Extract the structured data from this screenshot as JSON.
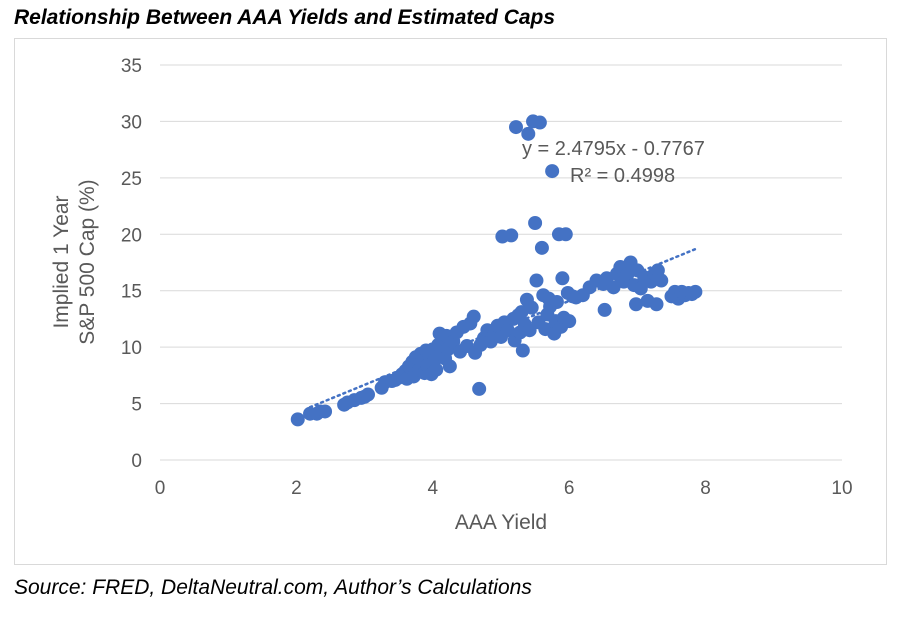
{
  "figure": {
    "title": "Relationship Between AAA Yields and Estimated Caps",
    "source": "Source: FRED, DeltaNeutral.com, Author’s Calculations"
  },
  "chart_data": {
    "type": "scatter",
    "xlabel": "AAA Yield",
    "ylabel_line1": "Implied 1 Year",
    "ylabel_line2": "S&P 500 Cap (%)",
    "xlim": [
      0,
      10
    ],
    "ylim": [
      0,
      35
    ],
    "xticks": [
      0,
      2,
      4,
      6,
      8,
      10
    ],
    "yticks": [
      0,
      5,
      10,
      15,
      20,
      25,
      30,
      35
    ],
    "xtick_labels": [
      "0",
      "2",
      "4",
      "6",
      "8",
      "10"
    ],
    "ytick_labels": [
      "0",
      "5",
      "10",
      "15",
      "20",
      "25",
      "30",
      "35"
    ],
    "grid": "horizontal",
    "marker_color": "#4472c4",
    "trendline": {
      "slope": 2.4795,
      "intercept": -0.7767,
      "x_range": [
        2.2,
        7.85
      ],
      "equation_label": "y = 2.4795x - 0.7767",
      "r2_label": "R² = 0.4998",
      "color": "#4472c4"
    },
    "points": [
      [
        2.02,
        3.6
      ],
      [
        2.2,
        4.1
      ],
      [
        2.3,
        4.1
      ],
      [
        2.35,
        4.3
      ],
      [
        2.42,
        4.3
      ],
      [
        2.7,
        4.9
      ],
      [
        2.75,
        5.1
      ],
      [
        2.85,
        5.3
      ],
      [
        2.95,
        5.5
      ],
      [
        3.0,
        5.6
      ],
      [
        3.05,
        5.8
      ],
      [
        3.25,
        6.4
      ],
      [
        3.3,
        6.9
      ],
      [
        3.4,
        7.0
      ],
      [
        3.45,
        7.1
      ],
      [
        3.5,
        7.3
      ],
      [
        3.55,
        7.6
      ],
      [
        3.6,
        7.9
      ],
      [
        3.62,
        7.2
      ],
      [
        3.65,
        8.3
      ],
      [
        3.7,
        8.7
      ],
      [
        3.72,
        7.4
      ],
      [
        3.75,
        9.1
      ],
      [
        3.8,
        8.0
      ],
      [
        3.82,
        9.4
      ],
      [
        3.85,
        8.6
      ],
      [
        3.88,
        7.7
      ],
      [
        3.9,
        9.7
      ],
      [
        3.92,
        8.4
      ],
      [
        3.95,
        9.2
      ],
      [
        3.98,
        7.6
      ],
      [
        4.0,
        9.8
      ],
      [
        4.02,
        8.8
      ],
      [
        4.05,
        8.0
      ],
      [
        4.08,
        10.2
      ],
      [
        4.1,
        11.2
      ],
      [
        4.12,
        9.5
      ],
      [
        4.15,
        10.8
      ],
      [
        4.18,
        9.0
      ],
      [
        4.2,
        11.0
      ],
      [
        4.22,
        9.8
      ],
      [
        4.25,
        8.3
      ],
      [
        4.3,
        10.5
      ],
      [
        4.35,
        11.3
      ],
      [
        4.4,
        9.6
      ],
      [
        4.45,
        11.8
      ],
      [
        4.5,
        10.1
      ],
      [
        4.55,
        12.1
      ],
      [
        4.6,
        12.7
      ],
      [
        4.62,
        9.5
      ],
      [
        4.68,
        6.3
      ],
      [
        4.7,
        10.2
      ],
      [
        4.75,
        10.8
      ],
      [
        4.8,
        11.5
      ],
      [
        4.85,
        10.5
      ],
      [
        4.9,
        11.1
      ],
      [
        4.95,
        11.9
      ],
      [
        5.0,
        10.9
      ],
      [
        5.02,
        19.8
      ],
      [
        5.05,
        12.2
      ],
      [
        5.1,
        11.5
      ],
      [
        5.15,
        19.9
      ],
      [
        5.18,
        12.5
      ],
      [
        5.2,
        10.6
      ],
      [
        5.22,
        29.5
      ],
      [
        5.25,
        12.8
      ],
      [
        5.28,
        11.3
      ],
      [
        5.3,
        13.1
      ],
      [
        5.32,
        9.7
      ],
      [
        5.35,
        12.0
      ],
      [
        5.38,
        14.2
      ],
      [
        5.4,
        28.9
      ],
      [
        5.42,
        11.5
      ],
      [
        5.45,
        13.5
      ],
      [
        5.47,
        30.0
      ],
      [
        5.5,
        21.0
      ],
      [
        5.52,
        15.9
      ],
      [
        5.55,
        12.2
      ],
      [
        5.57,
        29.9
      ],
      [
        5.6,
        18.8
      ],
      [
        5.62,
        14.6
      ],
      [
        5.65,
        11.6
      ],
      [
        5.68,
        12.9
      ],
      [
        5.7,
        14.3
      ],
      [
        5.72,
        13.6
      ],
      [
        5.75,
        25.6
      ],
      [
        5.78,
        11.2
      ],
      [
        5.8,
        12.3
      ],
      [
        5.82,
        14.0
      ],
      [
        5.85,
        20.0
      ],
      [
        5.88,
        11.8
      ],
      [
        5.9,
        16.1
      ],
      [
        5.92,
        12.6
      ],
      [
        5.95,
        20.0
      ],
      [
        5.98,
        14.8
      ],
      [
        6.0,
        12.3
      ],
      [
        6.05,
        14.5
      ],
      [
        6.1,
        14.4
      ],
      [
        6.2,
        14.6
      ],
      [
        6.3,
        15.3
      ],
      [
        6.4,
        15.9
      ],
      [
        6.5,
        15.6
      ],
      [
        6.52,
        13.3
      ],
      [
        6.55,
        16.1
      ],
      [
        6.65,
        15.3
      ],
      [
        6.7,
        16.5
      ],
      [
        6.75,
        17.1
      ],
      [
        6.8,
        15.8
      ],
      [
        6.85,
        16.4
      ],
      [
        6.9,
        17.5
      ],
      [
        6.95,
        15.5
      ],
      [
        6.98,
        13.8
      ],
      [
        7.0,
        16.8
      ],
      [
        7.05,
        15.2
      ],
      [
        7.1,
        16.2
      ],
      [
        7.15,
        14.1
      ],
      [
        7.2,
        15.8
      ],
      [
        7.25,
        16.5
      ],
      [
        7.28,
        13.8
      ],
      [
        7.3,
        16.8
      ],
      [
        7.35,
        15.9
      ],
      [
        7.5,
        14.5
      ],
      [
        7.55,
        14.9
      ],
      [
        7.6,
        14.3
      ],
      [
        7.65,
        14.9
      ],
      [
        7.7,
        14.6
      ],
      [
        7.75,
        14.8
      ],
      [
        7.8,
        14.7
      ],
      [
        7.85,
        14.9
      ]
    ]
  }
}
